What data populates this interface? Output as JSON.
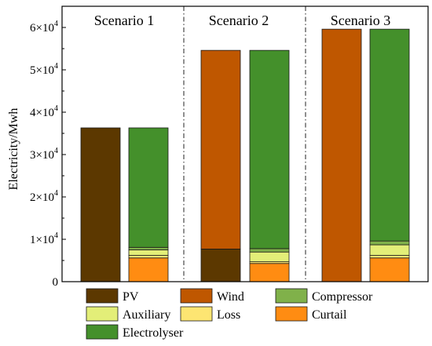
{
  "colors": {
    "PV": "#5c3800",
    "Wind": "#bf5700",
    "Compressor": "#80b14a",
    "Auxiliary": "#e3ee78",
    "Loss": "#fde572",
    "Curtail": "#ff8c12",
    "Electrolyser": "#44902b"
  },
  "chart_data": {
    "type": "bar",
    "stacked": true,
    "ylabel": "Electricity/Mwh",
    "ylim": [
      0,
      65000
    ],
    "yticks": [
      {
        "value": 0,
        "label": "0"
      },
      {
        "value": 10000,
        "label": "1×10",
        "exp": "4"
      },
      {
        "value": 20000,
        "label": "2×10",
        "exp": "4"
      },
      {
        "value": 30000,
        "label": "3×10",
        "exp": "4"
      },
      {
        "value": 40000,
        "label": "4×10",
        "exp": "4"
      },
      {
        "value": 50000,
        "label": "5×10",
        "exp": "4"
      },
      {
        "value": 60000,
        "label": "6×10",
        "exp": "4"
      }
    ],
    "scenarios": [
      "Scenario 1",
      "Scenario 2",
      "Scenario 3"
    ],
    "bars": [
      {
        "group": 0,
        "segments": [
          {
            "series": "PV",
            "value": 36300
          }
        ]
      },
      {
        "group": 0,
        "segments": [
          {
            "series": "Curtail",
            "value": 5600
          },
          {
            "series": "Loss",
            "value": 600
          },
          {
            "series": "Auxiliary",
            "value": 1300
          },
          {
            "series": "Compressor",
            "value": 600
          },
          {
            "series": "Electrolyser",
            "value": 28200
          }
        ]
      },
      {
        "group": 1,
        "segments": [
          {
            "series": "PV",
            "value": 7700
          },
          {
            "series": "Wind",
            "value": 46900
          }
        ]
      },
      {
        "group": 1,
        "segments": [
          {
            "series": "Curtail",
            "value": 4300
          },
          {
            "series": "Loss",
            "value": 400
          },
          {
            "series": "Auxiliary",
            "value": 2300
          },
          {
            "series": "Compressor",
            "value": 800
          },
          {
            "series": "Electrolyser",
            "value": 46800
          }
        ]
      },
      {
        "group": 2,
        "segments": [
          {
            "series": "Wind",
            "value": 59600
          }
        ]
      },
      {
        "group": 2,
        "segments": [
          {
            "series": "Curtail",
            "value": 5600
          },
          {
            "series": "Loss",
            "value": 600
          },
          {
            "series": "Auxiliary",
            "value": 2500
          },
          {
            "series": "Compressor",
            "value": 900
          },
          {
            "series": "Electrolyser",
            "value": 50000
          }
        ]
      }
    ],
    "legend": [
      {
        "name": "PV"
      },
      {
        "name": "Wind"
      },
      {
        "name": "Compressor"
      },
      {
        "name": "Auxiliary"
      },
      {
        "name": "Loss"
      },
      {
        "name": "Curtail"
      },
      {
        "name": "Electrolyser"
      }
    ]
  }
}
